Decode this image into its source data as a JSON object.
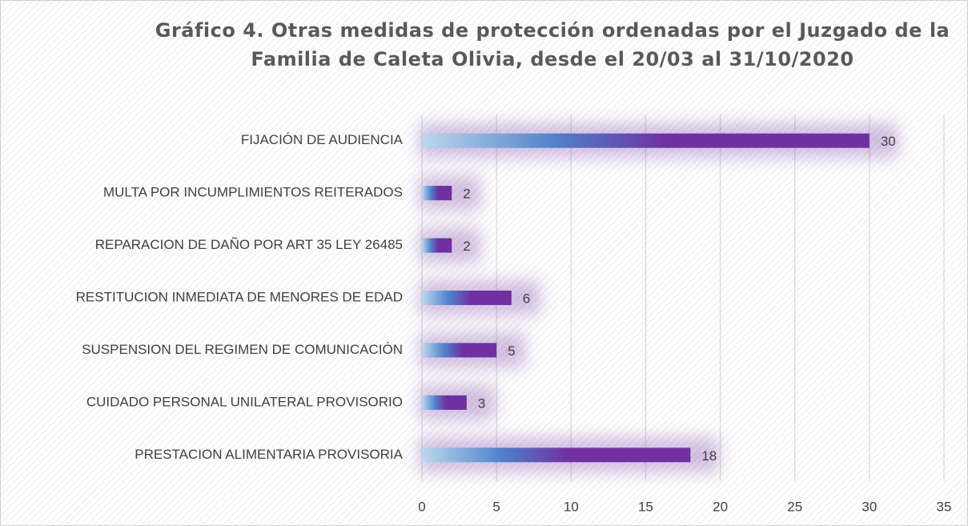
{
  "chart_data": {
    "type": "bar",
    "orientation": "horizontal",
    "title": "Gráfico 4. Otras medidas de protección ordenadas por el Juzgado de la Familia de Caleta Olivia,  desde el 20/03 al 31/10/2020",
    "categories": [
      "FIJACIÓN DE AUDIENCIA",
      "MULTA POR INCUMPLIMIENTOS REITERADOS",
      "REPARACION DE DAÑO POR ART 35 LEY 26485",
      "RESTITUCION INMEDIATA DE MENORES DE EDAD",
      "SUSPENSION DEL REGIMEN DE COMUNICACIÓN",
      "CUIDADO PERSONAL UNILATERAL PROVISORIO",
      "PRESTACION ALIMENTARIA PROVISORIA"
    ],
    "values": [
      30,
      2,
      2,
      6,
      5,
      3,
      18
    ],
    "color": "#7030a0",
    "xlim": [
      0,
      35
    ],
    "xticks": [
      0,
      5,
      10,
      15,
      20,
      25,
      30,
      35
    ],
    "grid": true
  }
}
